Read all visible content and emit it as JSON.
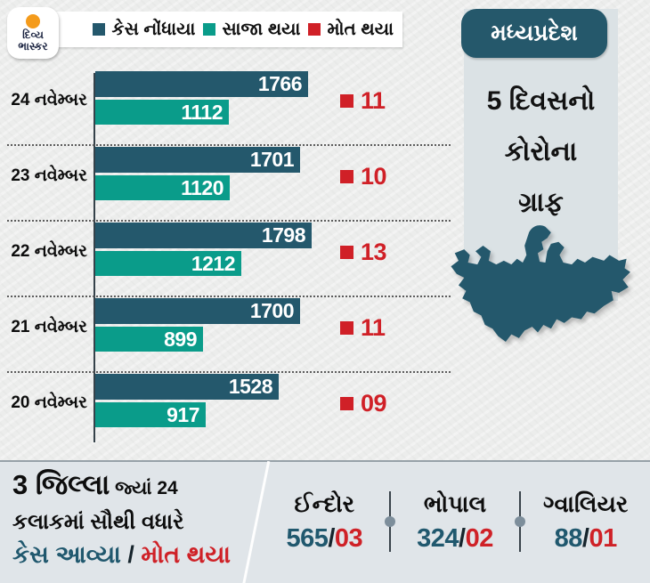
{
  "brand": {
    "line1": "દિવ્ય",
    "line2": "ભાસ્કર"
  },
  "legend": [
    {
      "label": "કેસ નોંધાયા",
      "color": "#24586c"
    },
    {
      "label": "સાજા થયા",
      "color": "#0a9c8a"
    },
    {
      "label": "મોત થયા",
      "color": "#d02027"
    }
  ],
  "header": {
    "state": "મધ્યપ્રદેશ",
    "title_lines": [
      "5 દિવસનો",
      "કોરોના",
      "ગ્રાફ"
    ]
  },
  "chart_data": {
    "type": "bar",
    "orientation": "horizontal",
    "title": "મધ્યપ્રદેશ — 5 દિવસનો કોરોના ગ્રાફ",
    "categories": [
      "24 નવેમ્બર",
      "23 નવેમ્બર",
      "22 નવેમ્બર",
      "21 નવેમ્બર",
      "20 નવેમ્બર"
    ],
    "series": [
      {
        "name": "કેસ નોંધાયા",
        "color": "#24586c",
        "values": [
          1766,
          1701,
          1798,
          1700,
          1528
        ]
      },
      {
        "name": "સાજા થયા",
        "color": "#0a9c8a",
        "values": [
          1112,
          1120,
          1212,
          899,
          917
        ]
      },
      {
        "name": "મોત થયા",
        "color": "#d02027",
        "values_text": [
          "11",
          "10",
          "13",
          "11",
          "09"
        ]
      }
    ],
    "xlim": [
      0,
      1850
    ],
    "grid": "dotted row separators",
    "legend_position": "top"
  },
  "footer": {
    "headline": {
      "big": "3 જિલ્લા",
      "rest": " જ્યાં 24",
      "line2": "કલાકમાં સૌથી વધારે",
      "cases_label": "કેસ આવ્યા",
      "separator": " / ",
      "deaths_label": "મોત થયા"
    },
    "districts": [
      {
        "name": "ઈન્દોર",
        "cases": "565",
        "slash": "/",
        "deaths": "03"
      },
      {
        "name": "ભોપાલ",
        "cases": "324",
        "slash": "/",
        "deaths": "02"
      },
      {
        "name": "ગ્વાલિયર",
        "cases": "88",
        "slash": "/",
        "deaths": "01"
      }
    ]
  },
  "colors": {
    "cases": "#24586c",
    "recovered": "#0a9c8a",
    "deaths": "#d02027",
    "panel_bg": "#dbe2e5",
    "footer_bg": "#e0e5e9",
    "page_bg": "#ecedec",
    "brand_orange": "#f49b1b"
  }
}
